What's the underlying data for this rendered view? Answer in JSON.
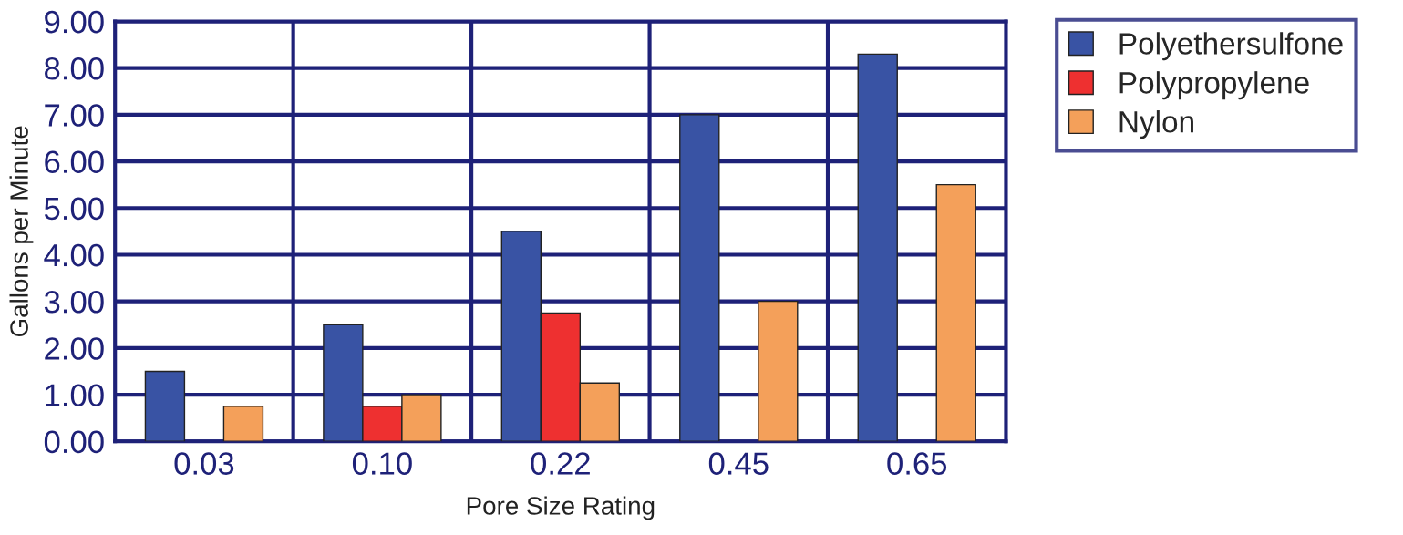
{
  "chart_data": {
    "type": "bar",
    "xlabel": "Pore Size Rating",
    "ylabel": "Gallons per Minute",
    "categories": [
      "0.03",
      "0.10",
      "0.22",
      "0.45",
      "0.65"
    ],
    "series": [
      {
        "name": "Polyethersulfone",
        "color": "#3953a4",
        "values": [
          1.5,
          2.5,
          4.5,
          7.0,
          8.3
        ]
      },
      {
        "name": "Polypropylene",
        "color": "#ee3030",
        "values": [
          null,
          0.75,
          2.75,
          null,
          null
        ]
      },
      {
        "name": "Nylon",
        "color": "#f4a05a",
        "values": [
          0.75,
          1.0,
          1.25,
          3.0,
          5.5
        ]
      }
    ],
    "ylim": [
      0,
      9
    ],
    "yticks": [
      {
        "value": 0,
        "label": "0.00"
      },
      {
        "value": 1,
        "label": "1.00"
      },
      {
        "value": 2,
        "label": "2.00"
      },
      {
        "value": 3,
        "label": "3.00"
      },
      {
        "value": 4,
        "label": "4.00"
      },
      {
        "value": 5,
        "label": "5.00"
      },
      {
        "value": 6,
        "label": "6.00"
      },
      {
        "value": 7,
        "label": "7.00"
      },
      {
        "value": 8,
        "label": "8.00"
      },
      {
        "value": 9,
        "label": "9.00"
      }
    ],
    "grid": true,
    "legend": "top right"
  }
}
